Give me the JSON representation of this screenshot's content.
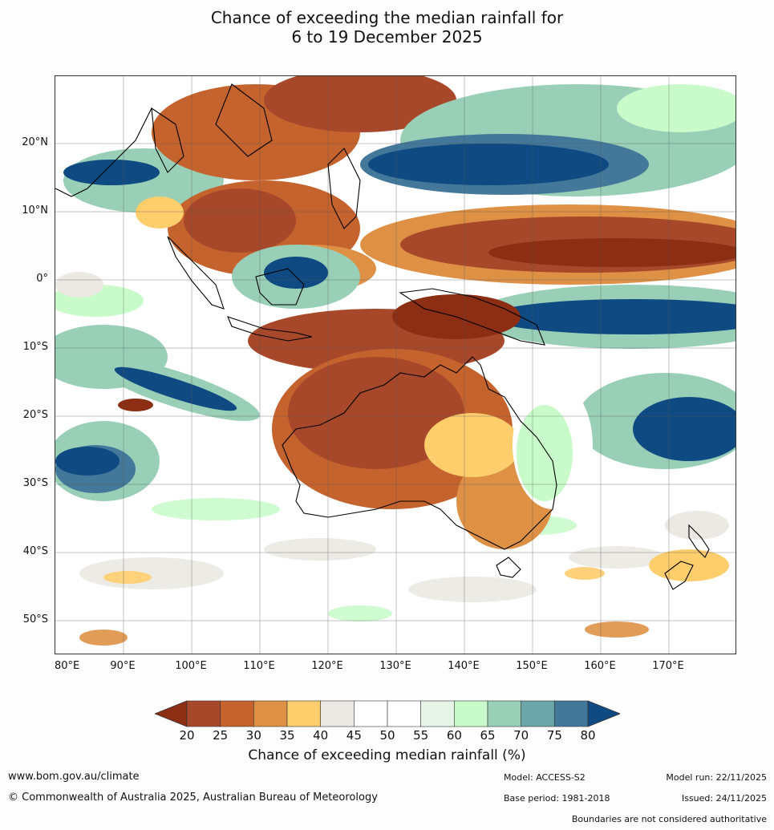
{
  "title_line1": "Chance of exceeding the median rainfall for",
  "title_line2": "6 to 19 December 2025",
  "lat_labels": [
    "20°N",
    "10°N",
    "0°",
    "10°S",
    "20°S",
    "30°S",
    "40°S",
    "50°S"
  ],
  "lon_labels": [
    "80°E",
    "90°E",
    "100°E",
    "110°E",
    "120°E",
    "130°E",
    "140°E",
    "150°E",
    "160°E",
    "170°E"
  ],
  "legend": {
    "ticks": [
      "20",
      "25",
      "30",
      "35",
      "40",
      "45",
      "50",
      "55",
      "60",
      "65",
      "70",
      "75",
      "80"
    ],
    "colors": [
      "#8b2e14",
      "#a8482a",
      "#c5632e",
      "#de9145",
      "#fecd6c",
      "#ece9e4",
      "#ffffff",
      "#ffffff",
      "#e6f5e8",
      "#c9fbca",
      "#99cfb7",
      "#6ba5a7",
      "#44789a",
      "#0f4a82"
    ],
    "title": "Chance of exceeding median rainfall (%)"
  },
  "footer": {
    "url": "www.bom.gov.au/climate",
    "copyright": "© Commonwealth of Australia 2025, Australian Bureau of Meteorology",
    "model": "Model: ACCESS-S2",
    "base_period": "Base period: 1981-2018",
    "model_run": "Model run: 22/11/2025",
    "issued": "Issued: 24/11/2025",
    "disclaimer": "Boundaries are not considered authoritative"
  }
}
